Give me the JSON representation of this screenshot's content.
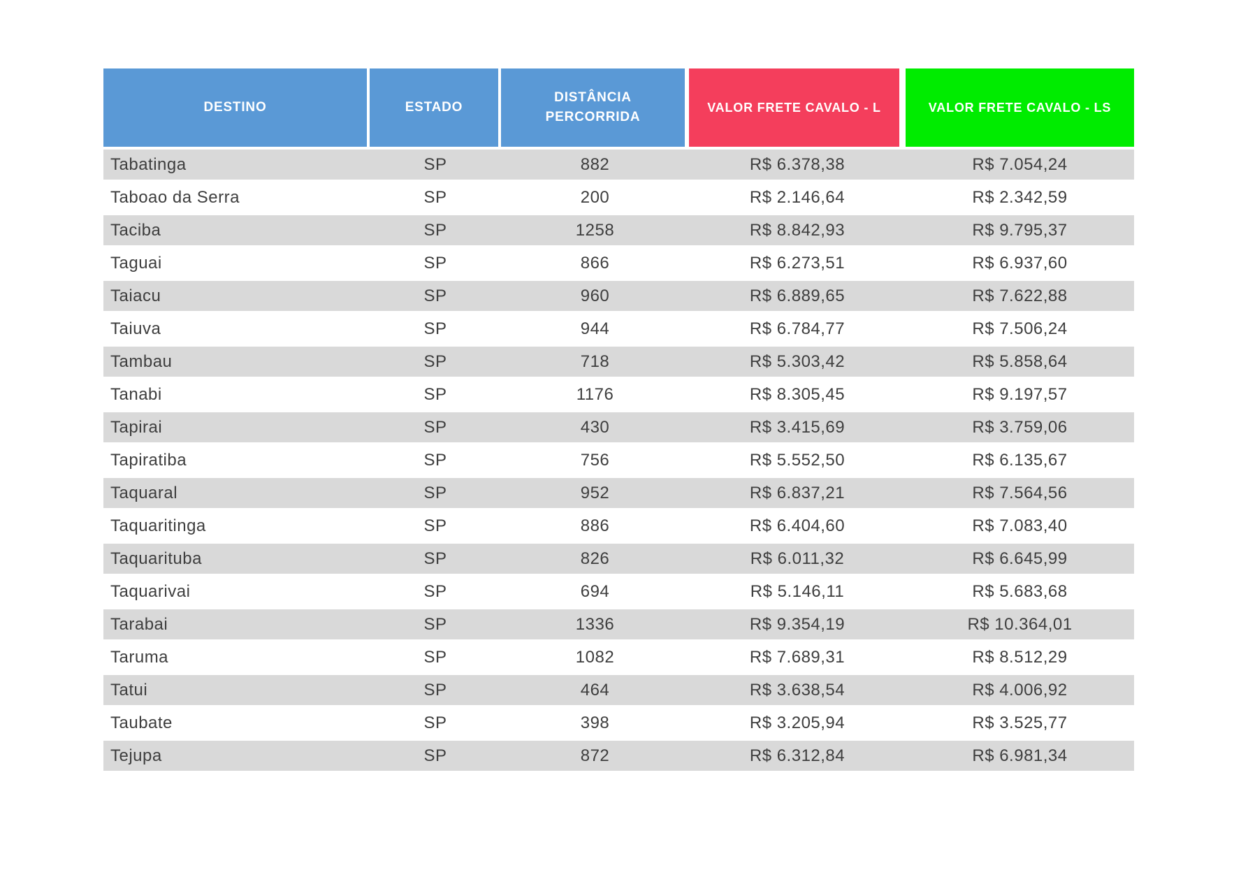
{
  "chart_data": {
    "type": "table",
    "columns": [
      "DESTINO",
      "ESTADO",
      "DISTÂNCIA PERCORRIDA",
      "VALOR FRETE CAVALO - L",
      "VALOR FRETE CAVALO - LS"
    ],
    "rows": [
      [
        "Tabatinga",
        "SP",
        "882",
        "R$ 6.378,38",
        "R$ 7.054,24"
      ],
      [
        "Taboao da Serra",
        "SP",
        "200",
        "R$ 2.146,64",
        "R$ 2.342,59"
      ],
      [
        "Taciba",
        "SP",
        "1258",
        "R$ 8.842,93",
        "R$ 9.795,37"
      ],
      [
        "Taguai",
        "SP",
        "866",
        "R$ 6.273,51",
        "R$ 6.937,60"
      ],
      [
        "Taiacu",
        "SP",
        "960",
        "R$ 6.889,65",
        "R$ 7.622,88"
      ],
      [
        "Taiuva",
        "SP",
        "944",
        "R$ 6.784,77",
        "R$ 7.506,24"
      ],
      [
        "Tambau",
        "SP",
        "718",
        "R$ 5.303,42",
        "R$ 5.858,64"
      ],
      [
        "Tanabi",
        "SP",
        "1176",
        "R$ 8.305,45",
        "R$ 9.197,57"
      ],
      [
        "Tapirai",
        "SP",
        "430",
        "R$ 3.415,69",
        "R$ 3.759,06"
      ],
      [
        "Tapiratiba",
        "SP",
        "756",
        "R$ 5.552,50",
        "R$ 6.135,67"
      ],
      [
        "Taquaral",
        "SP",
        "952",
        "R$ 6.837,21",
        "R$ 7.564,56"
      ],
      [
        "Taquaritinga",
        "SP",
        "886",
        "R$ 6.404,60",
        "R$ 7.083,40"
      ],
      [
        "Taquarituba",
        "SP",
        "826",
        "R$ 6.011,32",
        "R$ 6.645,99"
      ],
      [
        "Taquarivai",
        "SP",
        "694",
        "R$ 5.146,11",
        "R$ 5.683,68"
      ],
      [
        "Tarabai",
        "SP",
        "1336",
        "R$ 9.354,19",
        "R$ 10.364,01"
      ],
      [
        "Taruma",
        "SP",
        "1082",
        "R$ 7.689,31",
        "R$ 8.512,29"
      ],
      [
        "Tatui",
        "SP",
        "464",
        "R$ 3.638,54",
        "R$ 4.006,92"
      ],
      [
        "Taubate",
        "SP",
        "398",
        "R$ 3.205,94",
        "R$ 3.525,77"
      ],
      [
        "Tejupa",
        "SP",
        "872",
        "R$ 6.312,84",
        "R$ 6.981,34"
      ]
    ],
    "header_colors": [
      "#5A99D6",
      "#5A99D6",
      "#5A99D6",
      "#F43E5C",
      "#00EC00"
    ],
    "header_text_color": "#FFFFFF",
    "body_text_color": "#3E3E3E",
    "row_stripe_odd": "#D9D9D9",
    "row_stripe_even": "#FFFFFF"
  }
}
